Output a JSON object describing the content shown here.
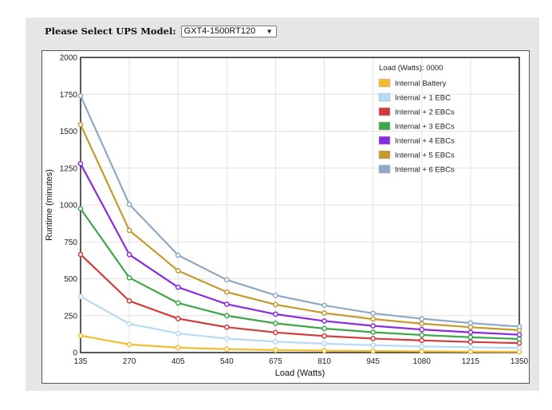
{
  "selector": {
    "label": "Please Select UPS Model:",
    "selected_model": "GXT4-1500RT120"
  },
  "icons": {
    "dropdown": "chevron-down-icon"
  },
  "chart_data": {
    "type": "line",
    "title": "",
    "xlabel": "Load (Watts)",
    "ylabel": "Runtime (minutes)",
    "xlim": [
      135,
      1350
    ],
    "ylim": [
      0,
      2000
    ],
    "x": [
      135,
      270,
      405,
      540,
      675,
      810,
      945,
      1080,
      1215,
      1350
    ],
    "x_ticks": [
      "135",
      "270",
      "405",
      "540",
      "675",
      "810",
      "945",
      "1080",
      "1215",
      "1350"
    ],
    "y_ticks": [
      "0",
      "250",
      "500",
      "750",
      "1000",
      "1250",
      "1500",
      "1750",
      "2000"
    ],
    "grid": true,
    "legend_position": "top-right",
    "legend_title": "Load (Watts): 0000",
    "series": [
      {
        "name": "Internal Battery",
        "color": "#f2bd2e",
        "values": [
          115,
          55,
          33,
          23,
          17,
          13,
          10,
          8,
          6,
          5
        ]
      },
      {
        "name": "Internal + 1 EBC",
        "color": "#b6daf4",
        "values": [
          380,
          195,
          130,
          95,
          74,
          60,
          50,
          42,
          36,
          31
        ]
      },
      {
        "name": "Internal + 2 EBCs",
        "color": "#d13b3b",
        "values": [
          665,
          350,
          230,
          172,
          136,
          112,
          95,
          82,
          72,
          64
        ]
      },
      {
        "name": "Internal + 3 EBCs",
        "color": "#3fa64a",
        "values": [
          975,
          507,
          336,
          250,
          198,
          163,
          138,
          119,
          104,
          92
        ]
      },
      {
        "name": "Internal + 4 EBCs",
        "color": "#8a2be2",
        "values": [
          1280,
          664,
          443,
          328,
          260,
          214,
          181,
          156,
          137,
          121
        ]
      },
      {
        "name": "Internal + 5 EBCs",
        "color": "#c49a2c",
        "values": [
          1545,
          828,
          555,
          410,
          325,
          268,
          227,
          196,
          172,
          152
        ]
      },
      {
        "name": "Internal + 6 EBCs",
        "color": "#8fa9c4",
        "values": [
          1740,
          1005,
          660,
          493,
          388,
          320,
          266,
          229,
          200,
          176
        ]
      }
    ]
  }
}
